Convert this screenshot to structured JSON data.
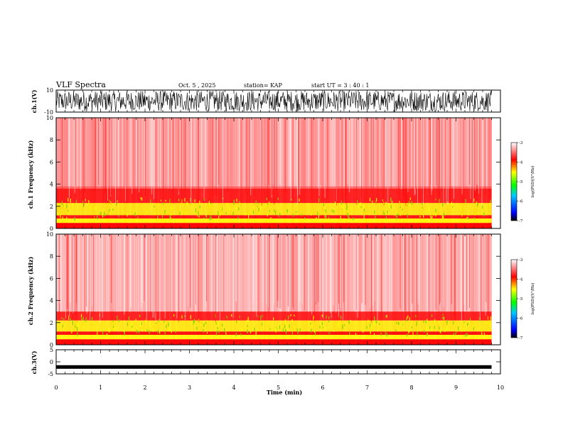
{
  "header": {
    "title": "VLF Spectra",
    "date": "Oct. 5  , 2025",
    "station": "station= KAP",
    "start": "start  UT  =   3  : 40 : 1"
  },
  "chart_data": [
    {
      "type": "line",
      "name": "ch1-waveform",
      "ylabel": "ch.1(V)",
      "ylim": [
        -10,
        10
      ],
      "yticks": [
        "10",
        "-10"
      ],
      "xlim": [
        0,
        10
      ]
    },
    {
      "type": "heatmap",
      "name": "ch1-spectrogram",
      "ylabel": "ch.1\nFrequency (kHz)",
      "ylim": [
        0,
        10
      ],
      "yticks": [
        "0",
        "2",
        "4",
        "6",
        "8",
        "10"
      ],
      "xlim": [
        0,
        10
      ],
      "data_end_min": 9.8,
      "colorbar": {
        "label": "log(PSD)(V²/Hz)",
        "range": [
          -7,
          -3
        ],
        "ticks": [
          "-3",
          "-4",
          "-5",
          "-6",
          "-7"
        ]
      }
    },
    {
      "type": "heatmap",
      "name": "ch2-spectrogram",
      "ylabel": "ch.2\nFrequency (kHz)",
      "ylim": [
        0,
        10
      ],
      "yticks": [
        "0",
        "2",
        "4",
        "6",
        "8",
        "10"
      ],
      "xlim": [
        0,
        10
      ],
      "data_end_min": 9.8,
      "colorbar": {
        "label": "log(PSD)(V²/Hz)",
        "range": [
          -7,
          -3
        ],
        "ticks": [
          "-3",
          "-4",
          "-5",
          "-6",
          "-7"
        ]
      }
    },
    {
      "type": "line",
      "name": "ch3-waveform",
      "ylabel": "ch.3(V)",
      "ylim": [
        -5,
        5
      ],
      "yticks": [
        "5",
        "0",
        "-5"
      ],
      "xlim": [
        0,
        10
      ],
      "baseline_v": -2
    }
  ],
  "xaxis": {
    "label": "Time (min)",
    "ticks": [
      "0",
      "1",
      "2",
      "3",
      "4",
      "5",
      "6",
      "7",
      "8",
      "9",
      "10"
    ]
  },
  "colors": {
    "background": "#ffffff",
    "axis": "#000000",
    "spectrogram_high": "#ff0000",
    "spectrogram_mid": "#ffff00",
    "spectrogram_low": "#00cc00"
  }
}
